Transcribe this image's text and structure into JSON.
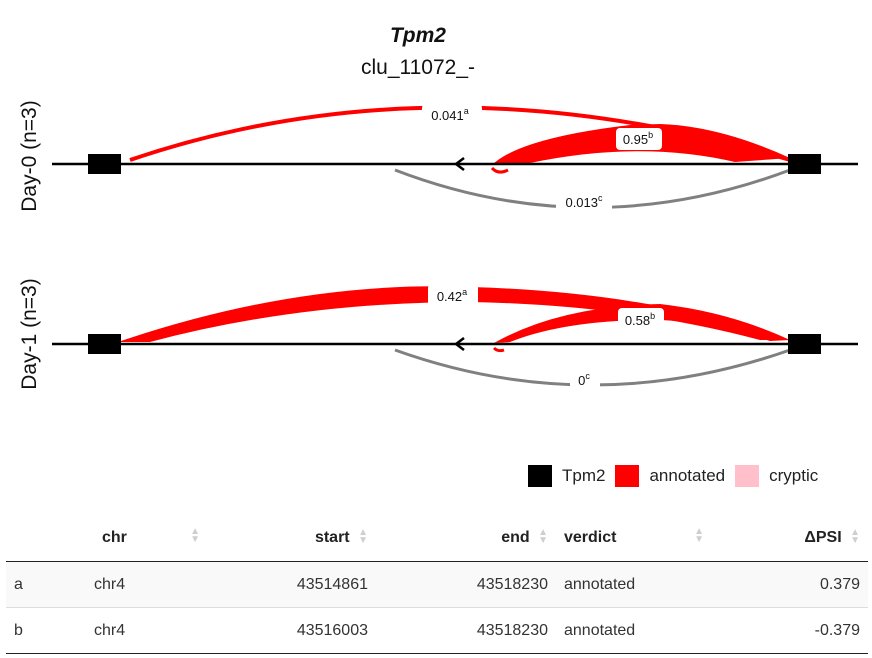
{
  "plot": {
    "gene": "Tpm2",
    "cluster": "clu_11072_-",
    "panels": [
      {
        "label": "Day-0 (n=3)",
        "junctions": [
          {
            "label": "0.041",
            "sup": "a",
            "value": 0.041,
            "type": "annotated"
          },
          {
            "label": "0.95",
            "sup": "b",
            "value": 0.95,
            "type": "annotated"
          },
          {
            "label": "0.013",
            "sup": "c",
            "value": 0.013,
            "type": "cryptic"
          }
        ]
      },
      {
        "label": "Day-1 (n=3)",
        "junctions": [
          {
            "label": "0.42",
            "sup": "a",
            "value": 0.42,
            "type": "annotated"
          },
          {
            "label": "0.58",
            "sup": "b",
            "value": 0.58,
            "type": "annotated"
          },
          {
            "label": "0",
            "sup": "c",
            "value": 0,
            "type": "cryptic"
          }
        ]
      }
    ],
    "colors": {
      "gene": "#000000",
      "annotated": "#ff0000",
      "cryptic": "#ffc0cb",
      "cryptic_arc": "#808080"
    },
    "legend": [
      {
        "label": "Tpm2",
        "color": "#000000"
      },
      {
        "label": "annotated",
        "color": "#ff0000"
      },
      {
        "label": "cryptic",
        "color": "#ffc0cb"
      }
    ]
  },
  "table": {
    "columns": [
      "",
      "chr",
      "start",
      "end",
      "verdict",
      "ΔPSI"
    ],
    "rows": [
      {
        "id": "a",
        "chr": "chr4",
        "start": "43514861",
        "end": "43518230",
        "verdict": "annotated",
        "dpsi": "0.379"
      },
      {
        "id": "b",
        "chr": "chr4",
        "start": "43516003",
        "end": "43518230",
        "verdict": "annotated",
        "dpsi": "-0.379"
      }
    ]
  }
}
